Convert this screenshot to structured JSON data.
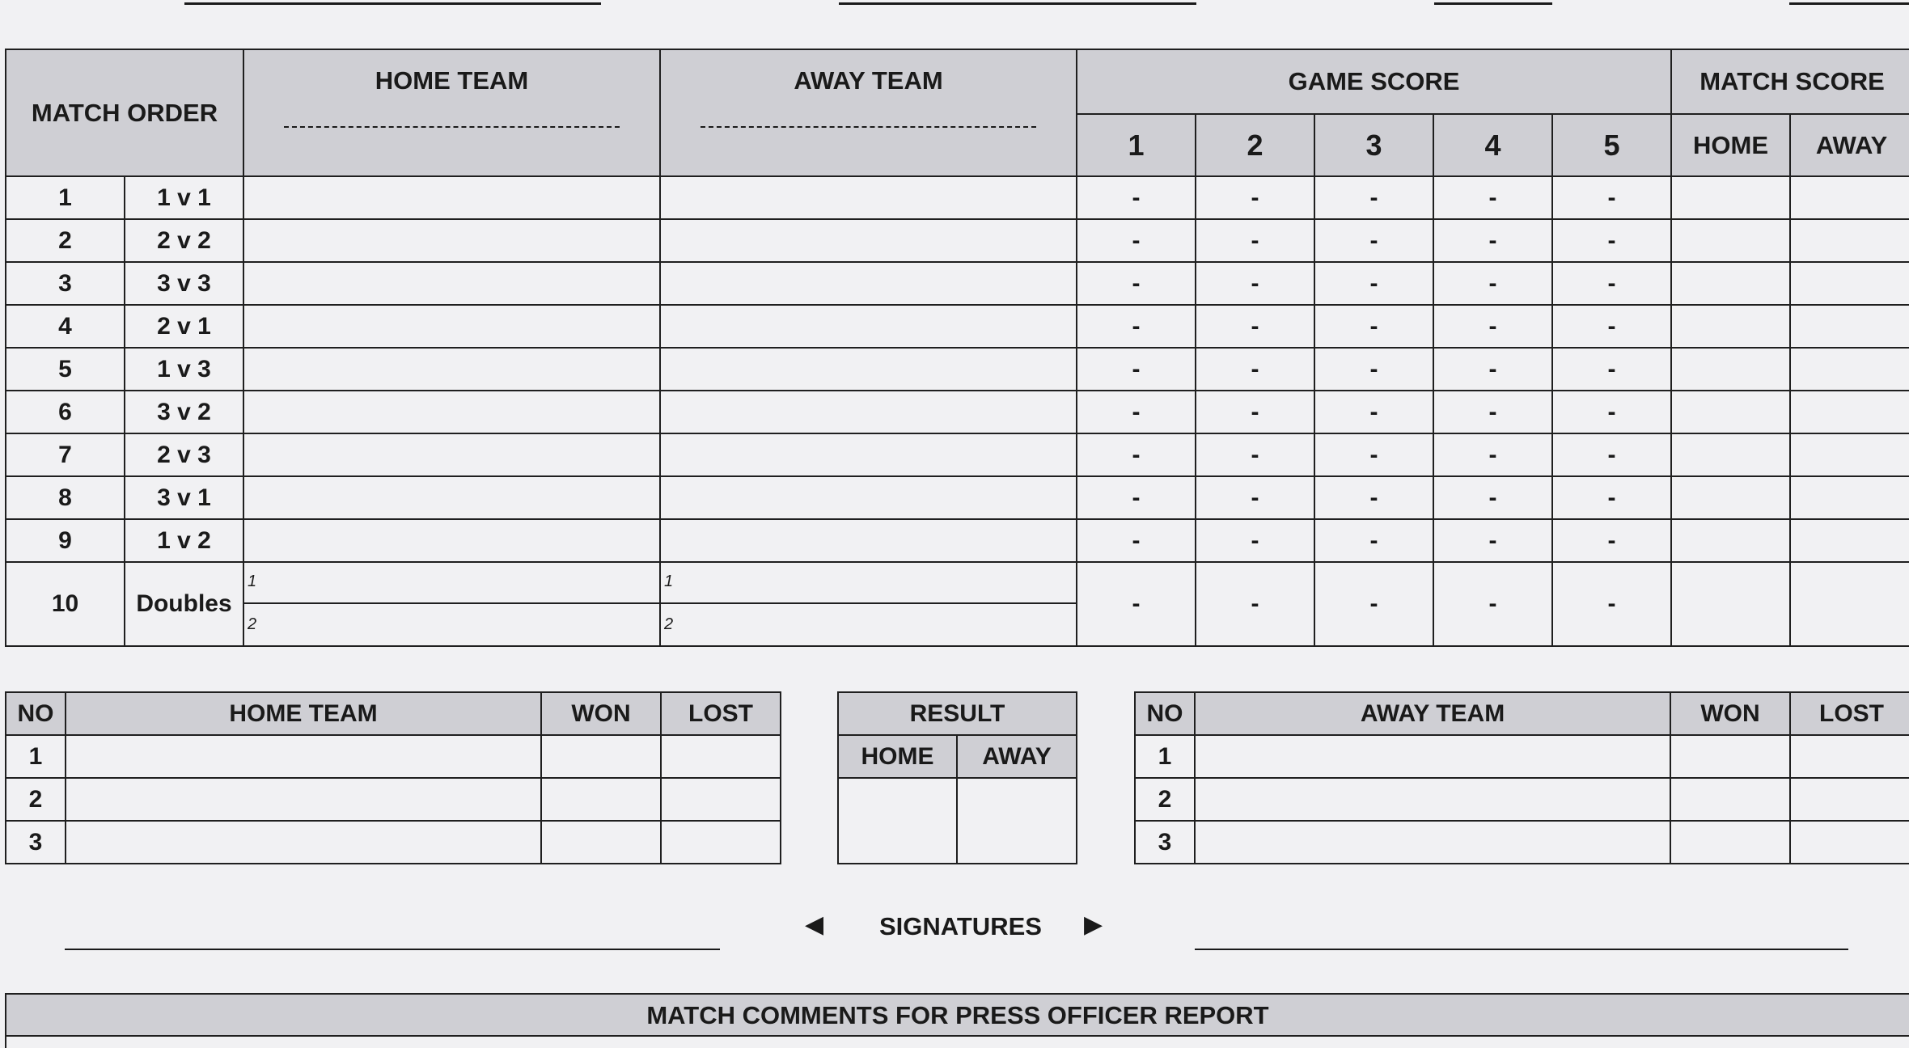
{
  "main_table": {
    "match_order_label": "MATCH ORDER",
    "home_team_label": "HOME TEAM",
    "away_team_label": "AWAY TEAM",
    "game_score_label": "GAME SCORE",
    "match_score_label": "MATCH SCORE",
    "game_numbers": [
      "1",
      "2",
      "3",
      "4",
      "5"
    ],
    "match_score_home": "HOME",
    "match_score_away": "AWAY",
    "dash": "-",
    "rows": [
      {
        "no": "1",
        "pair": "1 v 1"
      },
      {
        "no": "2",
        "pair": "2 v 2"
      },
      {
        "no": "3",
        "pair": "3 v 3"
      },
      {
        "no": "4",
        "pair": "2 v 1"
      },
      {
        "no": "5",
        "pair": "1 v 3"
      },
      {
        "no": "6",
        "pair": "3 v 2"
      },
      {
        "no": "7",
        "pair": "2 v 3"
      },
      {
        "no": "8",
        "pair": "3 v 1"
      },
      {
        "no": "9",
        "pair": "1 v 2"
      }
    ],
    "doubles": {
      "no": "10",
      "pair": "Doubles",
      "line1": "1",
      "line2": "2"
    }
  },
  "home_summary": {
    "no_label": "NO",
    "team_label": "HOME TEAM",
    "won_label": "WON",
    "lost_label": "LOST",
    "rows": [
      "1",
      "2",
      "3"
    ]
  },
  "result": {
    "label": "RESULT",
    "home": "HOME",
    "away": "AWAY"
  },
  "away_summary": {
    "no_label": "NO",
    "team_label": "AWAY TEAM",
    "won_label": "WON",
    "lost_label": "LOST",
    "rows": [
      "1",
      "2",
      "3"
    ]
  },
  "signatures": {
    "left_arrow": "◀",
    "label": "SIGNATURES",
    "right_arrow": "▶"
  },
  "comments": {
    "label": "MATCH COMMENTS FOR PRESS OFFICER REPORT"
  }
}
